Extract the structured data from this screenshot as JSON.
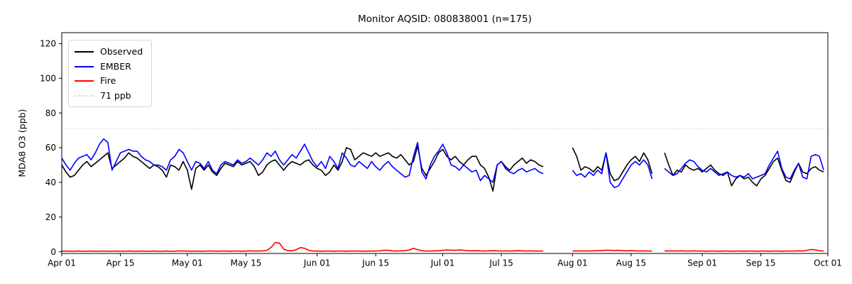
{
  "title": "Monitor AQSID: 080838001 (n=175)",
  "legend": {
    "items": [
      {
        "label": "Observed",
        "color": "#000000",
        "style": "solid"
      },
      {
        "label": "EMBER",
        "color": "#0000ff",
        "style": "solid"
      },
      {
        "label": "Fire",
        "color": "#ff0000",
        "style": "solid"
      },
      {
        "label": "71 ppb",
        "color": "#d3d3d3",
        "style": "dotted"
      }
    ]
  },
  "chart_data": {
    "type": "line",
    "title": "Monitor AQSID: 080838001 (n=175)",
    "xlabel": "",
    "ylabel": "MDA8 O3 (ppb)",
    "ylim": [
      -1,
      126.3
    ],
    "yticks": [
      0,
      20,
      40,
      60,
      80,
      100,
      120
    ],
    "x_axis": {
      "start_label": "Apr 01",
      "end_label": "Oct 01",
      "total_days": 183,
      "tick_labels": [
        "Apr 01",
        "Apr 15",
        "May 01",
        "May 15",
        "Jun 01",
        "Jun 15",
        "Jul 01",
        "Jul 15",
        "Aug 01",
        "Aug 15",
        "Sep 01",
        "Sep 15",
        "Oct 01"
      ],
      "tick_day_index": [
        0,
        14,
        30,
        44,
        61,
        75,
        91,
        105,
        122,
        136,
        153,
        167,
        183
      ]
    },
    "grid": false,
    "legend_position": "upper left",
    "threshold": {
      "value": 71,
      "label": "71 ppb",
      "color": "#d3d3d3",
      "style": "dotted"
    },
    "gaps_note": "null = missing day (Jul 26-31, Aug 21-22); n=175 of 183 days Apr 1 - Sep 30",
    "series": [
      {
        "name": "Observed",
        "color": "#000000",
        "values": [
          50,
          46,
          43,
          44,
          47,
          50,
          52,
          49,
          51,
          53,
          55,
          57,
          48,
          50,
          52,
          54,
          57,
          55,
          54,
          52,
          50,
          48,
          50,
          49,
          47,
          43,
          50,
          49,
          47,
          52,
          47,
          36,
          48,
          50,
          47,
          50,
          46,
          44,
          48,
          51,
          50,
          49,
          52,
          50,
          51,
          52,
          49,
          44,
          46,
          50,
          52,
          53,
          50,
          47,
          50,
          52,
          51,
          50,
          52,
          53,
          50,
          48,
          47,
          44,
          46,
          50,
          47,
          52,
          60,
          59,
          53,
          55,
          57,
          56,
          55,
          57,
          55,
          56,
          57,
          55,
          54,
          56,
          53,
          50,
          52,
          61,
          48,
          44,
          48,
          52,
          57,
          59,
          55,
          53,
          55,
          52,
          50,
          53,
          55,
          55,
          50,
          48,
          43,
          35,
          50,
          52,
          49,
          47,
          50,
          52,
          54,
          51,
          53,
          52,
          50,
          49,
          null,
          null,
          null,
          null,
          null,
          null,
          60,
          55,
          47,
          49,
          48,
          46,
          49,
          47,
          57,
          45,
          41,
          42,
          46,
          50,
          53,
          55,
          52,
          57,
          53,
          45,
          null,
          null,
          57,
          50,
          44,
          47,
          46,
          50,
          48,
          47,
          48,
          46,
          48,
          50,
          47,
          45,
          44,
          46,
          38,
          42,
          44,
          42,
          43,
          40,
          38,
          42,
          44,
          48,
          52,
          54,
          47,
          41,
          40,
          46,
          51,
          46,
          45,
          48,
          49,
          47,
          46
        ]
      },
      {
        "name": "EMBER",
        "color": "#0000ff",
        "values": [
          54,
          50,
          47,
          51,
          54,
          55,
          56,
          53,
          57,
          62,
          65,
          63,
          47,
          52,
          57,
          58,
          59,
          58,
          58,
          55,
          53,
          52,
          50,
          50,
          49,
          47,
          53,
          55,
          59,
          57,
          52,
          47,
          52,
          51,
          48,
          52,
          47,
          45,
          50,
          52,
          51,
          50,
          53,
          51,
          52,
          54,
          52,
          50,
          53,
          57,
          55,
          58,
          53,
          50,
          53,
          56,
          54,
          58,
          62,
          57,
          52,
          49,
          52,
          48,
          55,
          52,
          48,
          57,
          54,
          50,
          49,
          52,
          50,
          48,
          52,
          49,
          47,
          50,
          52,
          49,
          47,
          45,
          43,
          44,
          55,
          63,
          46,
          42,
          50,
          55,
          58,
          62,
          57,
          50,
          49,
          47,
          50,
          48,
          46,
          47,
          41,
          44,
          42,
          40,
          50,
          52,
          48,
          46,
          45,
          47,
          48,
          46,
          47,
          48,
          46,
          45,
          null,
          null,
          null,
          null,
          null,
          null,
          47,
          44,
          45,
          43,
          46,
          44,
          47,
          45,
          57,
          40,
          37,
          38,
          42,
          46,
          50,
          52,
          50,
          53,
          50,
          42,
          null,
          null,
          48,
          46,
          44,
          45,
          48,
          51,
          53,
          52,
          49,
          47,
          46,
          48,
          46,
          44,
          45,
          46,
          44,
          43,
          44,
          43,
          45,
          42,
          43,
          44,
          45,
          50,
          54,
          58,
          48,
          43,
          42,
          47,
          51,
          43,
          42,
          55,
          56,
          55,
          47
        ]
      },
      {
        "name": "Fire",
        "color": "#ff0000",
        "values": [
          0.3,
          0.4,
          0.3,
          0.3,
          0.4,
          0.3,
          0.3,
          0.4,
          0.3,
          0.3,
          0.4,
          0.3,
          0.3,
          0.4,
          0.3,
          0.3,
          0.4,
          0.3,
          0.3,
          0.4,
          0.3,
          0.3,
          0.4,
          0.3,
          0.3,
          0.4,
          0.3,
          0.3,
          0.5,
          0.4,
          0.4,
          0.3,
          0.4,
          0.3,
          0.3,
          0.4,
          0.4,
          0.3,
          0.4,
          0.4,
          0.3,
          0.4,
          0.4,
          0.3,
          0.4,
          0.5,
          0.4,
          0.4,
          0.5,
          0.8,
          2.5,
          5.3,
          5.0,
          1.5,
          0.6,
          0.5,
          1.2,
          2.4,
          2.0,
          0.8,
          0.4,
          0.4,
          0.3,
          0.4,
          0.4,
          0.3,
          0.4,
          0.4,
          0.3,
          0.4,
          0.4,
          0.4,
          0.3,
          0.4,
          0.4,
          0.4,
          0.5,
          0.9,
          0.8,
          0.5,
          0.4,
          0.5,
          0.6,
          1.0,
          2.0,
          1.2,
          0.6,
          0.4,
          0.4,
          0.5,
          0.6,
          0.8,
          1.0,
          0.9,
          0.8,
          1.0,
          0.8,
          0.6,
          0.5,
          0.6,
          0.5,
          0.4,
          0.5,
          0.6,
          0.5,
          0.4,
          0.5,
          0.4,
          0.5,
          0.6,
          0.5,
          0.4,
          0.5,
          0.4,
          0.4,
          0.4,
          null,
          null,
          null,
          null,
          null,
          null,
          0.4,
          0.5,
          0.4,
          0.5,
          0.4,
          0.5,
          0.6,
          0.7,
          0.9,
          0.8,
          0.7,
          0.8,
          0.6,
          0.5,
          0.6,
          0.5,
          0.4,
          0.5,
          0.4,
          0.4,
          null,
          null,
          0.5,
          0.4,
          0.5,
          0.4,
          0.5,
          0.4,
          0.4,
          0.5,
          0.4,
          0.4,
          0.3,
          0.4,
          0.4,
          0.3,
          0.4,
          0.4,
          0.3,
          0.4,
          0.4,
          0.3,
          0.4,
          0.4,
          0.3,
          0.4,
          0.4,
          0.3,
          0.4,
          0.4,
          0.3,
          0.4,
          0.4,
          0.4,
          0.5,
          0.4,
          0.8,
          1.3,
          1.0,
          0.6,
          0.4
        ]
      }
    ]
  }
}
